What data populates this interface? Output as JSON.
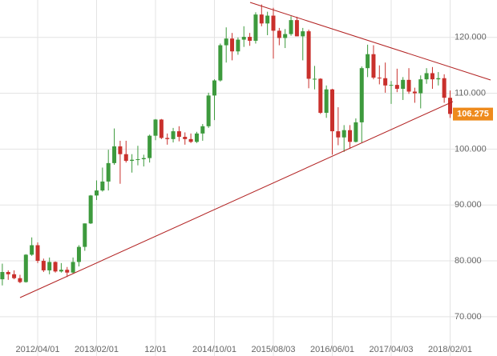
{
  "chart_data": {
    "type": "candlestick",
    "categories": [
      null,
      null,
      null,
      null,
      null,
      null,
      "2012/04/01",
      null,
      null,
      null,
      null,
      null,
      null,
      null,
      null,
      null,
      "2013/02/01",
      null,
      null,
      null,
      null,
      null,
      null,
      null,
      null,
      null,
      "12/01",
      null,
      null,
      null,
      null,
      null,
      null,
      null,
      null,
      null,
      "2014/10/01",
      null,
      null,
      null,
      null,
      null,
      null,
      null,
      null,
      null,
      "2015/08/03",
      null,
      null,
      null,
      null,
      null,
      null,
      null,
      null,
      null,
      "2016/06/01",
      null,
      null,
      null,
      null,
      null,
      null,
      null,
      null,
      null,
      "2017/04/03",
      null,
      null,
      null,
      null,
      null,
      null,
      null,
      null,
      null,
      "2018/02/01"
    ],
    "open": [
      76.7,
      78.0,
      77.6,
      76.9,
      76.2,
      81.1,
      82.8,
      80.0,
      78.3,
      79.8,
      78.1,
      78.4,
      77.9,
      79.8,
      82.5,
      86.7,
      91.7,
      92.6,
      94.2,
      97.5,
      100.5,
      99.1,
      97.9,
      98.1,
      98.2,
      98.4,
      102.4,
      105.3,
      102.0,
      101.8,
      103.2,
      102.2,
      101.8,
      101.3,
      102.8,
      104.1,
      109.6,
      112.3,
      118.6,
      119.8,
      117.5,
      119.6,
      120.1,
      119.4,
      124.1,
      122.5,
      123.9,
      121.2,
      119.9,
      120.6,
      123.1,
      120.2,
      121.1,
      112.6,
      112.6,
      106.5,
      110.7,
      103.2,
      102.1,
      103.4,
      101.3,
      104.8,
      114.5,
      117.0,
      112.8,
      112.7,
      111.4,
      111.5,
      110.8,
      112.4,
      110.3,
      110.0,
      112.5,
      113.6,
      112.5,
      112.7,
      109.2
    ],
    "high": [
      79.5,
      78.3,
      78.3,
      77.5,
      81.2,
      84.2,
      83.3,
      80.4,
      80.6,
      79.9,
      79.6,
      78.9,
      80.6,
      82.8,
      86.7,
      91.8,
      94.4,
      96.7,
      99.9,
      103.7,
      101.5,
      101.5,
      99.1,
      100.6,
      99.0,
      102.6,
      105.4,
      105.4,
      102.8,
      103.8,
      104.1,
      103.0,
      102.8,
      103.1,
      104.5,
      110.1,
      112.5,
      118.9,
      121.8,
      120.8,
      120.0,
      122.0,
      120.8,
      124.5,
      125.9,
      124.6,
      125.3,
      121.7,
      121.5,
      123.8,
      123.7,
      121.7,
      121.4,
      114.9,
      112.7,
      111.4,
      110.8,
      107.5,
      104.3,
      104.3,
      105.5,
      114.8,
      118.7,
      118.6,
      115.0,
      115.5,
      112.2,
      114.4,
      112.9,
      114.5,
      111.0,
      113.2,
      114.5,
      114.7,
      113.8,
      113.4,
      110.5
    ],
    "low": [
      75.6,
      76.6,
      76.7,
      76.0,
      76.1,
      80.9,
      79.6,
      78.0,
      77.6,
      77.9,
      77.9,
      77.1,
      77.7,
      79.0,
      81.8,
      86.6,
      90.9,
      92.4,
      92.6,
      97.2,
      93.8,
      97.6,
      95.8,
      97.1,
      96.9,
      97.6,
      101.6,
      101.8,
      100.8,
      101.2,
      101.4,
      100.8,
      101.1,
      101.1,
      101.5,
      103.8,
      105.2,
      112.1,
      115.5,
      115.9,
      116.9,
      118.3,
      118.5,
      118.9,
      122.0,
      120.4,
      116.2,
      118.6,
      118.1,
      120.3,
      120.2,
      115.9,
      110.9,
      110.7,
      106.3,
      105.6,
      99.0,
      100.7,
      99.5,
      100.1,
      101.2,
      101.2,
      112.9,
      112.5,
      111.6,
      110.1,
      108.1,
      110.2,
      108.8,
      109.9,
      108.3,
      107.3,
      111.7,
      110.8,
      111.4,
      108.3,
      105.6
    ],
    "close": [
      78.0,
      77.6,
      76.9,
      76.2,
      81.1,
      82.8,
      80.0,
      78.3,
      79.8,
      78.1,
      78.4,
      77.9,
      79.8,
      82.5,
      86.7,
      91.7,
      92.6,
      94.2,
      97.5,
      100.5,
      99.1,
      97.9,
      98.1,
      98.2,
      98.4,
      102.4,
      105.3,
      102.0,
      101.8,
      103.2,
      102.2,
      101.8,
      101.3,
      102.8,
      104.1,
      109.6,
      112.3,
      118.6,
      119.8,
      117.5,
      119.6,
      120.1,
      119.4,
      124.1,
      122.5,
      123.9,
      121.2,
      119.9,
      120.6,
      123.1,
      120.2,
      121.1,
      112.6,
      112.6,
      106.5,
      110.7,
      103.2,
      102.1,
      103.4,
      101.3,
      104.8,
      114.5,
      117.0,
      112.8,
      112.7,
      111.4,
      111.5,
      110.8,
      112.4,
      110.3,
      110.0,
      112.5,
      113.6,
      112.5,
      112.7,
      109.2,
      106.3
    ],
    "up_color": "#3d9a3d",
    "down_color": "#c9302c",
    "last_price": 106.275,
    "last_price_color": "#ee8a1c",
    "ylim": [
      65.4,
      126.7
    ],
    "yticks": [
      {
        "value": 70,
        "label": "70.000"
      },
      {
        "value": 80,
        "label": "80.000"
      },
      {
        "value": 90,
        "label": "90.000"
      },
      {
        "value": 100,
        "label": "100.000"
      },
      {
        "value": 110,
        "label": "110.000"
      },
      {
        "value": 120,
        "label": "120.000"
      }
    ],
    "grid": true
  }
}
